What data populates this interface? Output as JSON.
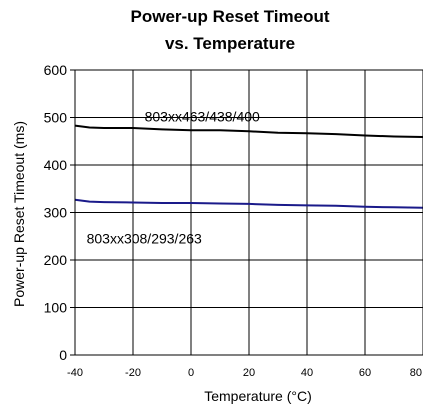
{
  "chart_data": {
    "type": "line",
    "title_line1": "Power-up Reset Timeout",
    "title_line2": "vs. Temperature",
    "xlabel": "Temperature (°C)",
    "ylabel": "Power-up Reset Timeout (ms)",
    "xlim": [
      -40,
      80
    ],
    "ylim": [
      0,
      600
    ],
    "xticks": [
      -40,
      -20,
      0,
      20,
      40,
      60,
      80
    ],
    "yticks": [
      0,
      100,
      200,
      300,
      400,
      500,
      600
    ],
    "grid": true,
    "series": [
      {
        "name": "803xx463/438/400",
        "color": "#000000",
        "x": [
          -40,
          -35,
          -30,
          -20,
          -10,
          0,
          10,
          20,
          30,
          40,
          50,
          60,
          70,
          80
        ],
        "y": [
          483,
          479,
          478,
          478,
          475,
          473,
          473,
          471,
          468,
          467,
          465,
          462,
          460,
          459
        ]
      },
      {
        "name": "803xx308/293/263",
        "color": "#1a1a8a",
        "x": [
          -40,
          -35,
          -30,
          -20,
          -10,
          0,
          10,
          20,
          30,
          40,
          50,
          60,
          70,
          80
        ],
        "y": [
          327,
          323,
          322,
          321,
          320,
          320,
          319,
          318,
          316,
          315,
          314,
          312,
          311,
          310
        ]
      }
    ],
    "annotations": [
      {
        "text": "803xx463/438/400",
        "x": -16,
        "y": 492
      },
      {
        "text": "803xx308/293/263",
        "x": -36,
        "y": 235
      }
    ]
  }
}
